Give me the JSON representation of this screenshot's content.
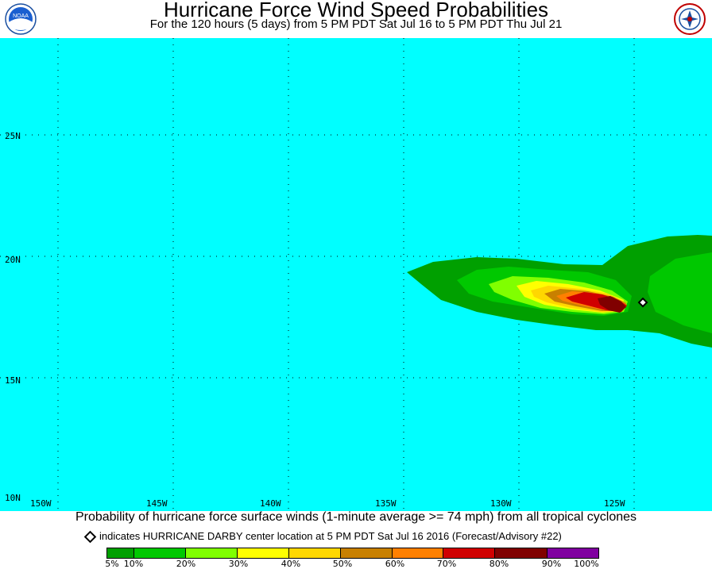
{
  "header": {
    "title": "Hurricane Force Wind Speed Probabilities",
    "subtitle": "For the 120 hours (5 days) from 5 PM PDT Sat Jul 16 to 5 PM PDT Thu Jul 21"
  },
  "logos": {
    "left": "noaa-logo-icon",
    "left_text": "NOAA",
    "right": "national-weather-service-logo-icon"
  },
  "map": {
    "background_color": "#00ffff",
    "lat_labels": [
      "25N",
      "20N",
      "15N",
      "10N"
    ],
    "lon_labels": [
      "150W",
      "145W",
      "140W",
      "135W",
      "130W",
      "125W"
    ],
    "storm": {
      "name": "HURRICANE DARBY",
      "center_lat": 18.1,
      "center_lon": -125.0,
      "marker_icon": "diamond-icon"
    }
  },
  "caption": "Probability of hurricane force surface winds (1-minute average >= 74 mph) from all tropical cyclones",
  "storm_note": "indicates HURRICANE DARBY center location at 5 PM PDT Sat Jul 16 2016 (Forecast/Advisory #22)",
  "legend": {
    "colors": [
      "#00a000",
      "#00c800",
      "#80ff00",
      "#ffff00",
      "#ffd700",
      "#c88000",
      "#ff8000",
      "#d00000",
      "#800000",
      "#8000a0"
    ],
    "labels": [
      "5%",
      "10%",
      "20%",
      "30%",
      "40%",
      "50%",
      "60%",
      "70%",
      "80%",
      "90%",
      "100%"
    ]
  }
}
